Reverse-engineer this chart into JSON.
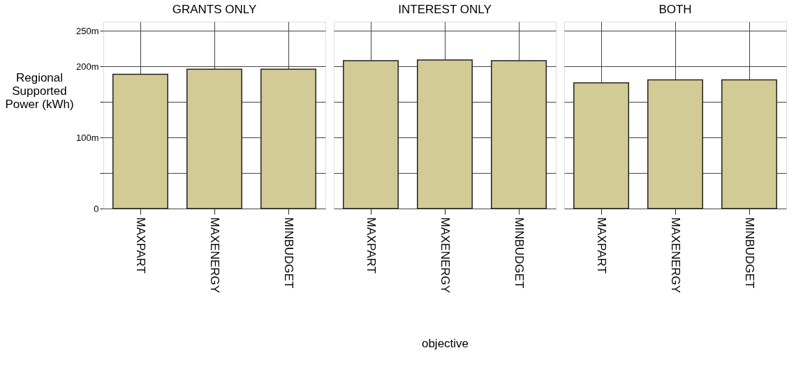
{
  "chart_data": [
    {
      "type": "bar",
      "title": "GRANTS ONLY",
      "ylabel": "Regional Supported Power (kWh)",
      "categories": [
        "MAXPART",
        "MAXENERGY",
        "MINBUDGET"
      ],
      "values": [
        189000000,
        196000000,
        196000000
      ],
      "color": "#d2cb95",
      "ylim": [
        0,
        263000000
      ],
      "yticks": [
        0,
        {
          "value": 50000000,
          "label": null
        },
        {
          "value": 100000000,
          "label": "100m"
        },
        {
          "value": 150000000,
          "label": null
        },
        {
          "value": 200000000,
          "label": "200m"
        },
        {
          "value": 250000000,
          "label": "250m"
        }
      ],
      "grid": true
    },
    {
      "type": "bar",
      "title": "INTEREST ONLY",
      "xlabel": "objective",
      "categories": [
        "MAXPART",
        "MAXENERGY",
        "MINBUDGET"
      ],
      "values": [
        208000000,
        209000000,
        208000000
      ],
      "color": "#d2cb95",
      "ylim": [
        0,
        263000000
      ],
      "yticks": [
        {
          "value": 0,
          "label": null
        },
        {
          "value": 50000000,
          "label": null
        },
        {
          "value": 100000000,
          "label": null
        },
        {
          "value": 150000000,
          "label": null
        },
        {
          "value": 200000000,
          "label": null
        },
        {
          "value": 250000000,
          "label": null
        }
      ],
      "grid": true,
      "tick_labels": "x"
    },
    {
      "type": "bar",
      "title": "BOTH",
      "categories": [
        "MAXPART",
        "MAXENERGY",
        "MINBUDGET"
      ],
      "values": [
        177000000,
        181000000,
        181000000
      ],
      "color": "#d2cb95",
      "ylim": [
        0,
        263000000
      ],
      "yticks": [
        {
          "value": 0,
          "label": null
        },
        {
          "value": 50000000,
          "label": null
        },
        {
          "value": 100000000,
          "label": null
        },
        {
          "value": 150000000,
          "label": null
        },
        {
          "value": 200000000,
          "label": null
        },
        {
          "value": 250000000,
          "label": null
        }
      ],
      "grid": true,
      "tick_labels": "x"
    }
  ]
}
